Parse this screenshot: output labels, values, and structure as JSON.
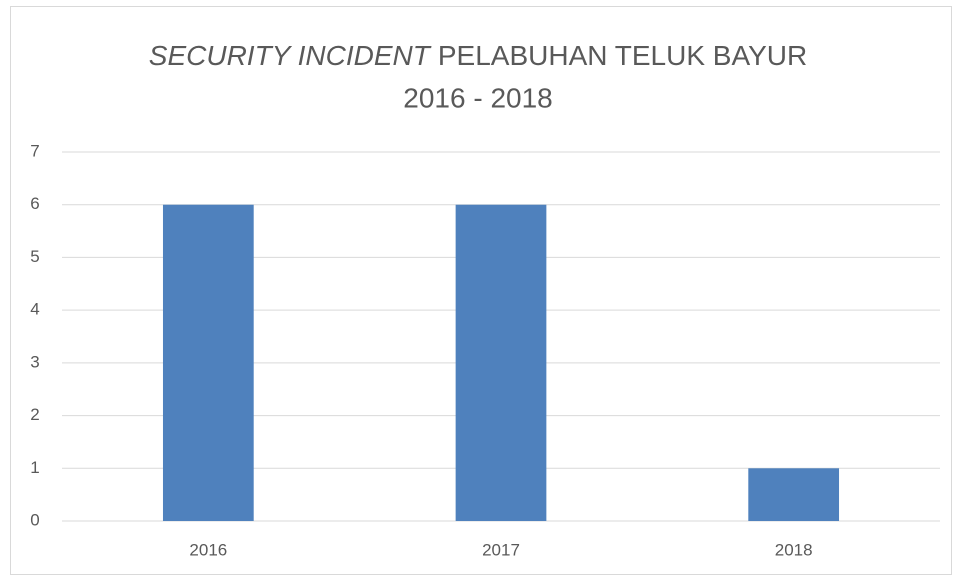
{
  "chart_data": {
    "type": "bar",
    "title": {
      "italic": "SECURITY INCIDENT",
      "rest": "PELABUHAN TELUK BAYUR",
      "line2": "2016 - 2018"
    },
    "categories": [
      "2016",
      "2017",
      "2018"
    ],
    "values": [
      6,
      6,
      1
    ],
    "color": "#4f81bd",
    "ylim": [
      0,
      7
    ],
    "yticks": [
      0,
      1,
      2,
      3,
      4,
      5,
      6,
      7
    ],
    "grid": true
  }
}
